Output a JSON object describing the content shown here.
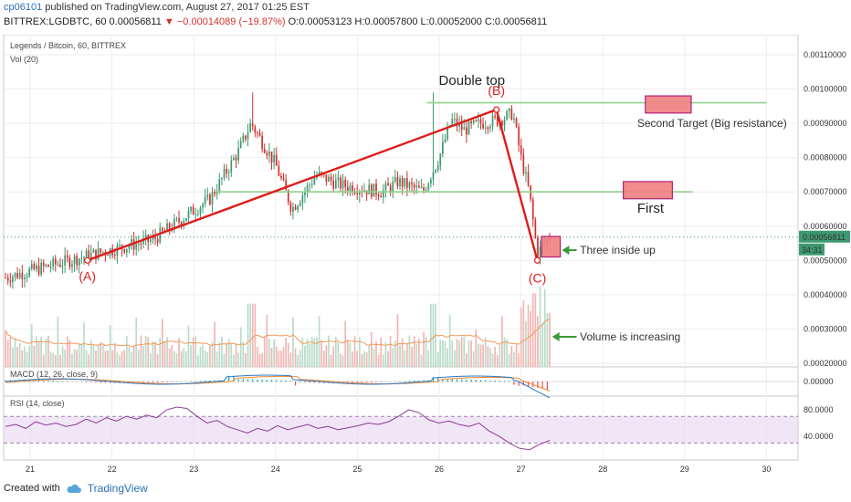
{
  "header": {
    "user": "cp06101",
    "published": "published on TradingView.com, August 27, 2017 01:25 EST",
    "symbol_line": "BITTREX:LGDBTC, 60",
    "last": "0.00056811",
    "change": "▼ −0.00014089 (−19.87%)",
    "ohlc": "O:0.00053123 H:0.00057800 L:0.00052000 C:0.00056811"
  },
  "footer": {
    "created_with": "Created with",
    "brand": "TradingView"
  },
  "colors": {
    "up": "#3d9970",
    "down": "#d0312d",
    "trend": "#e01b1b",
    "support": "#8fd08a",
    "target_fill": "#f08080",
    "target_stroke": "#b0207a",
    "volume_ma": "#f29a58",
    "macd": "#2b77c2",
    "signal": "#f28a34",
    "rsi": "#8c3b96",
    "rsi_band": "#e6d6f0",
    "arrow": "#3a9a3a"
  },
  "chart_data": [
    {
      "type": "candlestick",
      "title": "Legends / Bitcoin, 60, BITTREX",
      "x_tick_labels": [
        "21",
        "22",
        "23",
        "24",
        "25",
        "26",
        "27",
        "28",
        "29",
        "30"
      ],
      "y_tick_labels": [
        "0.00110000",
        "0.00100000",
        "0.00090000",
        "0.00080000",
        "0.00070000",
        "0.00060000",
        "0.00050000",
        "0.00040000",
        "0.00030000",
        "0.00020000"
      ],
      "ylim": [
        0.00019,
        0.00117
      ],
      "last_price_label": "0.00056811",
      "countdown_label": "34:31",
      "path_points": [
        {
          "day": 20.7,
          "price": 0.00045
        },
        {
          "day": 21.8,
          "price": 0.00052
        },
        {
          "day": 22.5,
          "price": 0.00056
        },
        {
          "day": 23.2,
          "price": 0.00068
        },
        {
          "day": 23.55,
          "price": 0.00082
        },
        {
          "day": 23.7,
          "price": 0.0009
        },
        {
          "day": 24.0,
          "price": 0.00078
        },
        {
          "day": 24.2,
          "price": 0.00065
        },
        {
          "day": 24.5,
          "price": 0.00075
        },
        {
          "day": 24.8,
          "price": 0.00072
        },
        {
          "day": 25.3,
          "price": 0.0007
        },
        {
          "day": 25.5,
          "price": 0.00073
        },
        {
          "day": 25.8,
          "price": 0.0007
        },
        {
          "day": 26.0,
          "price": 0.0008
        },
        {
          "day": 26.15,
          "price": 0.00091
        },
        {
          "day": 26.3,
          "price": 0.00088
        },
        {
          "day": 26.5,
          "price": 0.0009
        },
        {
          "day": 26.75,
          "price": 0.00091
        },
        {
          "day": 26.9,
          "price": 0.00093
        },
        {
          "day": 27.0,
          "price": 0.0008
        },
        {
          "day": 27.1,
          "price": 0.0007
        },
        {
          "day": 27.2,
          "price": 0.00052
        },
        {
          "day": 27.35,
          "price": 0.00057
        }
      ],
      "annotations": {
        "double_top": "Double top",
        "point_a": "(A)",
        "point_b": "(B)",
        "point_c": "(C)",
        "second_target": "Second Target (Big resistance)",
        "first": "First",
        "three_inside_up": "Three inside up",
        "volume_increasing": "Volume is increasing"
      },
      "trend_points": [
        {
          "day": 21.7,
          "price": 0.0005
        },
        {
          "day": 26.7,
          "price": 0.00094
        },
        {
          "day": 27.2,
          "price": 0.0005
        }
      ],
      "support_lines": [
        {
          "from_day": 23.3,
          "to_day": 29.1,
          "price": 0.0007
        },
        {
          "from_day": 25.85,
          "to_day": 30.0,
          "price": 0.00096
        }
      ],
      "target_zones": [
        {
          "day_from": 28.52,
          "day_to": 29.08,
          "price_low": 0.00093,
          "price_high": 0.00098
        },
        {
          "day_from": 28.25,
          "day_to": 28.85,
          "price_low": 0.00068,
          "price_high": 0.00073
        },
        {
          "day_from": 27.25,
          "day_to": 27.48,
          "price_low": 0.00051,
          "price_high": 0.00057
        }
      ]
    },
    {
      "type": "bar",
      "title": "Vol (20)",
      "note": "volume bars with 20-period moving average, plotted in lower part of main pane"
    },
    {
      "type": "line",
      "title": "MACD (12, 26, close, 9)",
      "y_tick_labels": [
        "0.00000"
      ]
    },
    {
      "type": "line",
      "title": "RSI (14, close)",
      "y_tick_labels": [
        "80.0000",
        "40.0000"
      ],
      "ylim": [
        10,
        95
      ],
      "band": [
        30,
        70
      ],
      "values": [
        55,
        58,
        52,
        62,
        57,
        60,
        55,
        58,
        66,
        60,
        68,
        63,
        70,
        66,
        72,
        68,
        80,
        84,
        82,
        70,
        60,
        64,
        55,
        50,
        45,
        52,
        48,
        56,
        50,
        54,
        58,
        52,
        55,
        50,
        53,
        56,
        60,
        58,
        62,
        70,
        80,
        76,
        65,
        60,
        63,
        58,
        55,
        60,
        48,
        40,
        30,
        22,
        20,
        28,
        34
      ]
    }
  ]
}
